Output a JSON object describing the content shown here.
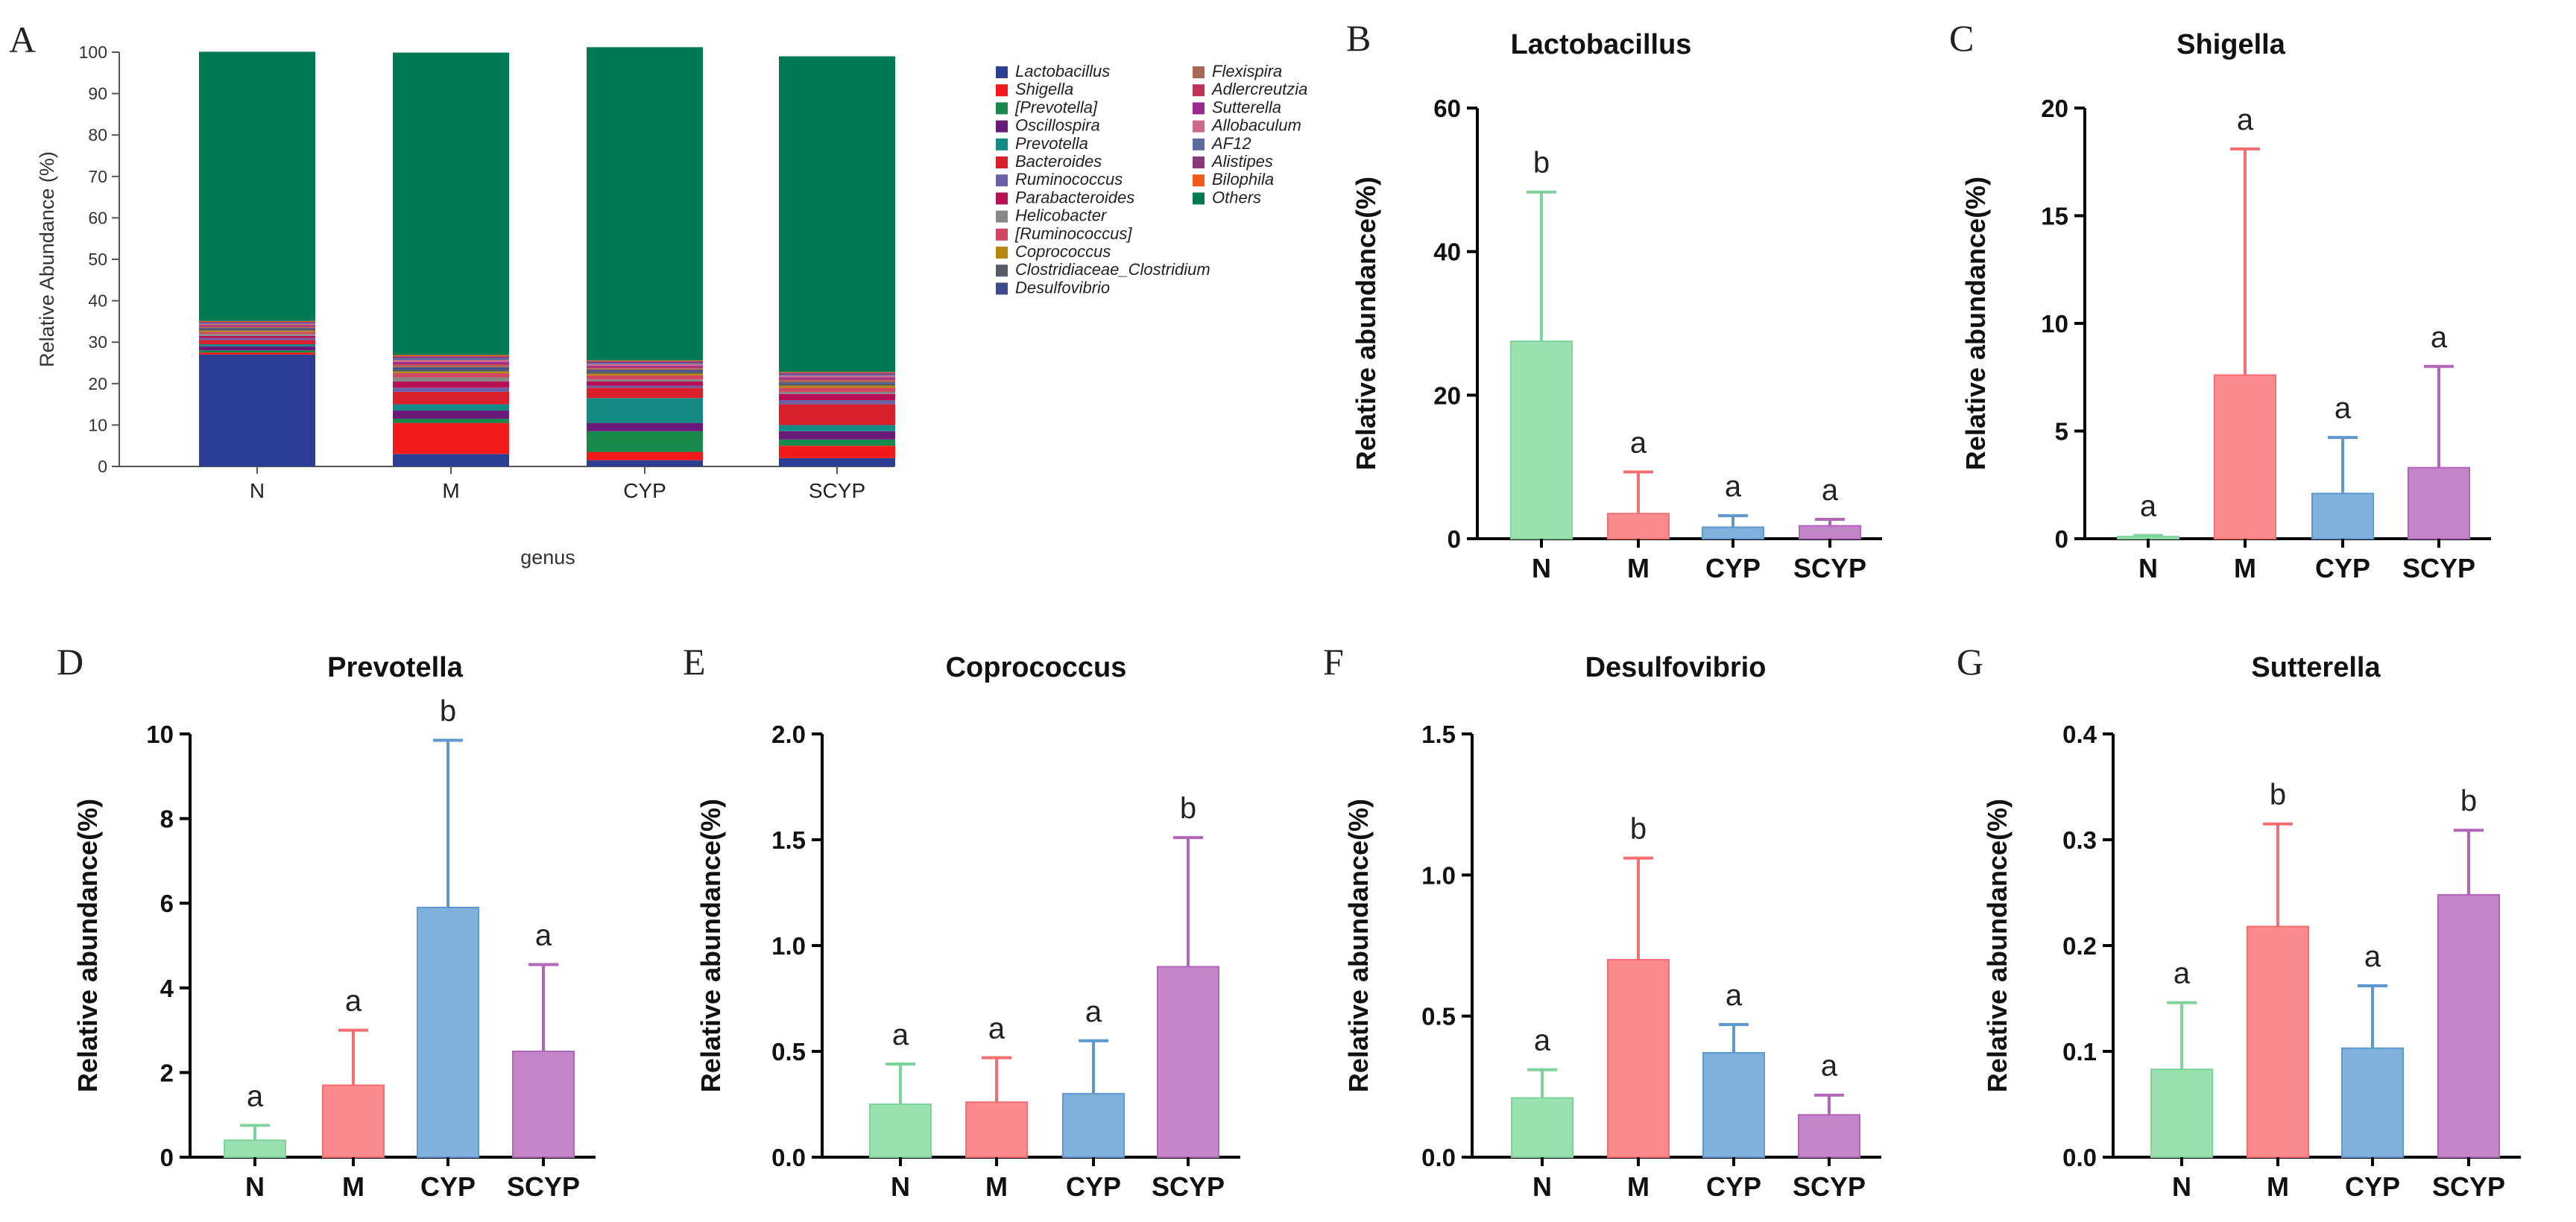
{
  "stacked": {
    "panel": "A",
    "ylabel": "Relative Abundance (%)",
    "xlabel": "genus",
    "yticks": [
      0,
      10,
      20,
      30,
      40,
      50,
      60,
      70,
      80,
      90,
      100
    ],
    "categories": [
      "N",
      "M",
      "CYP",
      "SCYP"
    ],
    "genera": [
      {
        "name": "Lactobacillus",
        "color": "#2c3e94",
        "values": [
          27,
          3,
          1.5,
          2
        ]
      },
      {
        "name": "Shigella",
        "color": "#f21a1a",
        "values": [
          0.5,
          7.5,
          2,
          3
        ]
      },
      {
        "name": "[Prevotella]",
        "color": "#17894a",
        "values": [
          0.5,
          1,
          5,
          1.5
        ]
      },
      {
        "name": "Oscillospira",
        "color": "#6a1a7a",
        "values": [
          1,
          2,
          2,
          2
        ]
      },
      {
        "name": "Prevotella",
        "color": "#138a85",
        "values": [
          0.5,
          1.5,
          6,
          1.5
        ]
      },
      {
        "name": "Bacteroides",
        "color": "#d81f2a",
        "values": [
          1,
          3,
          2.5,
          5
        ]
      },
      {
        "name": "Ruminococcus",
        "color": "#6b5fa8",
        "values": [
          0.5,
          1,
          0.5,
          1
        ]
      },
      {
        "name": "Parabacteroides",
        "color": "#b80f55",
        "values": [
          0.5,
          1.5,
          1,
          1.5
        ]
      },
      {
        "name": "Helicobacter",
        "color": "#888888",
        "values": [
          0.5,
          1,
          0.5,
          0.5
        ]
      },
      {
        "name": "[Ruminococcus]",
        "color": "#d04560",
        "values": [
          0.5,
          1,
          1,
          1
        ]
      },
      {
        "name": "Coprococcus",
        "color": "#b8860b",
        "values": [
          0.3,
          0.4,
          0.4,
          0.5
        ]
      },
      {
        "name": "Clostridiaceae_Clostridium",
        "color": "#555e66",
        "values": [
          0.3,
          0.5,
          0.5,
          0.5
        ]
      },
      {
        "name": "Desulfovibrio",
        "color": "#3f4a8c",
        "values": [
          0.3,
          0.5,
          0.4,
          0.3
        ]
      },
      {
        "name": "Flexispira",
        "color": "#a86a55",
        "values": [
          0.3,
          0.5,
          0.4,
          0.5
        ]
      },
      {
        "name": "Adlercreutzia",
        "color": "#c0335a",
        "values": [
          0.2,
          0.4,
          0.3,
          0.3
        ]
      },
      {
        "name": "Sutterella",
        "color": "#9b2a8f",
        "values": [
          0.2,
          0.4,
          0.3,
          0.4
        ]
      },
      {
        "name": "Allobaculum",
        "color": "#c86a88",
        "values": [
          0.3,
          0.5,
          0.4,
          0.4
        ]
      },
      {
        "name": "AF12",
        "color": "#5f6a9e",
        "values": [
          0.2,
          0.4,
          0.3,
          0.3
        ]
      },
      {
        "name": "Alistipes",
        "color": "#8a3a7a",
        "values": [
          0.3,
          0.5,
          0.4,
          0.4
        ]
      },
      {
        "name": "Bilophila",
        "color": "#f05a1a",
        "values": [
          0.2,
          0.3,
          0.2,
          0.2
        ]
      },
      {
        "name": "Others",
        "color": "#007a55",
        "values": [
          65,
          73,
          75.6,
          76.2
        ]
      }
    ]
  },
  "chart_data": [
    {
      "panel": "B",
      "type": "bar",
      "title": "Lactobacillus",
      "ylabel": "Relative abundance(%)",
      "categories": [
        "N",
        "M",
        "CYP",
        "SCYP"
      ],
      "values": [
        27.5,
        3.5,
        1.6,
        1.8
      ],
      "errors": [
        20.8,
        5.8,
        1.6,
        0.9
      ],
      "sig": [
        "b",
        "a",
        "a",
        "a"
      ],
      "ylim": [
        0,
        60
      ],
      "yticks": [
        "0",
        "20",
        "40",
        "60"
      ]
    },
    {
      "panel": "C",
      "type": "bar",
      "title": "Shigella",
      "ylabel": "Relative abundance(%)",
      "categories": [
        "N",
        "M",
        "CYP",
        "SCYP"
      ],
      "values": [
        0.1,
        7.6,
        2.1,
        3.3
      ],
      "errors": [
        0.05,
        10.5,
        2.6,
        4.7
      ],
      "sig": [
        "a",
        "a",
        "a",
        "a"
      ],
      "ylim": [
        0,
        20
      ],
      "yticks": [
        "0",
        "5",
        "10",
        "15",
        "20"
      ]
    },
    {
      "panel": "D",
      "type": "bar",
      "title": "Prevotella",
      "ylabel": "Relative abundance(%)",
      "categories": [
        "N",
        "M",
        "CYP",
        "SCYP"
      ],
      "values": [
        0.4,
        1.7,
        5.9,
        2.5
      ],
      "errors": [
        0.35,
        1.3,
        3.95,
        2.05
      ],
      "sig": [
        "a",
        "a",
        "b",
        "a"
      ],
      "ylim": [
        0,
        10
      ],
      "yticks": [
        "0",
        "2",
        "4",
        "6",
        "8",
        "10"
      ]
    },
    {
      "panel": "E",
      "type": "bar",
      "title": "Coprococcus",
      "ylabel": "Relative abundance(%)",
      "categories": [
        "N",
        "M",
        "CYP",
        "SCYP"
      ],
      "values": [
        0.25,
        0.26,
        0.3,
        0.9
      ],
      "errors": [
        0.19,
        0.21,
        0.25,
        0.61
      ],
      "sig": [
        "a",
        "a",
        "a",
        "b"
      ],
      "ylim": [
        0,
        2.0
      ],
      "yticks": [
        "0.0",
        "0.5",
        "1.0",
        "1.5",
        "2.0"
      ]
    },
    {
      "panel": "F",
      "type": "bar",
      "title": "Desulfovibrio",
      "ylabel": "Relative abundance(%)",
      "categories": [
        "N",
        "M",
        "CYP",
        "SCYP"
      ],
      "values": [
        0.21,
        0.7,
        0.37,
        0.15
      ],
      "errors": [
        0.1,
        0.36,
        0.1,
        0.07
      ],
      "sig": [
        "a",
        "b",
        "a",
        "a"
      ],
      "ylim": [
        0,
        1.5
      ],
      "yticks": [
        "0.0",
        "0.5",
        "1.0",
        "1.5"
      ]
    },
    {
      "panel": "G",
      "type": "bar",
      "title": "Sutterella",
      "ylabel": "Relative abundance(%)",
      "categories": [
        "N",
        "M",
        "CYP",
        "SCYP"
      ],
      "values": [
        0.083,
        0.218,
        0.103,
        0.248
      ],
      "errors": [
        0.063,
        0.097,
        0.059,
        0.061
      ],
      "sig": [
        "a",
        "b",
        "a",
        "b"
      ],
      "ylim": [
        0,
        0.4
      ],
      "yticks": [
        "0.0",
        "0.1",
        "0.2",
        "0.3",
        "0.4"
      ]
    }
  ],
  "bar_colors": {
    "fill": [
      "#9be0b0",
      "#fb8a8c",
      "#7fb1dc",
      "#c384c9"
    ],
    "edge": [
      "#7dd49a",
      "#f56e72",
      "#5e98cf",
      "#b266b8"
    ]
  }
}
